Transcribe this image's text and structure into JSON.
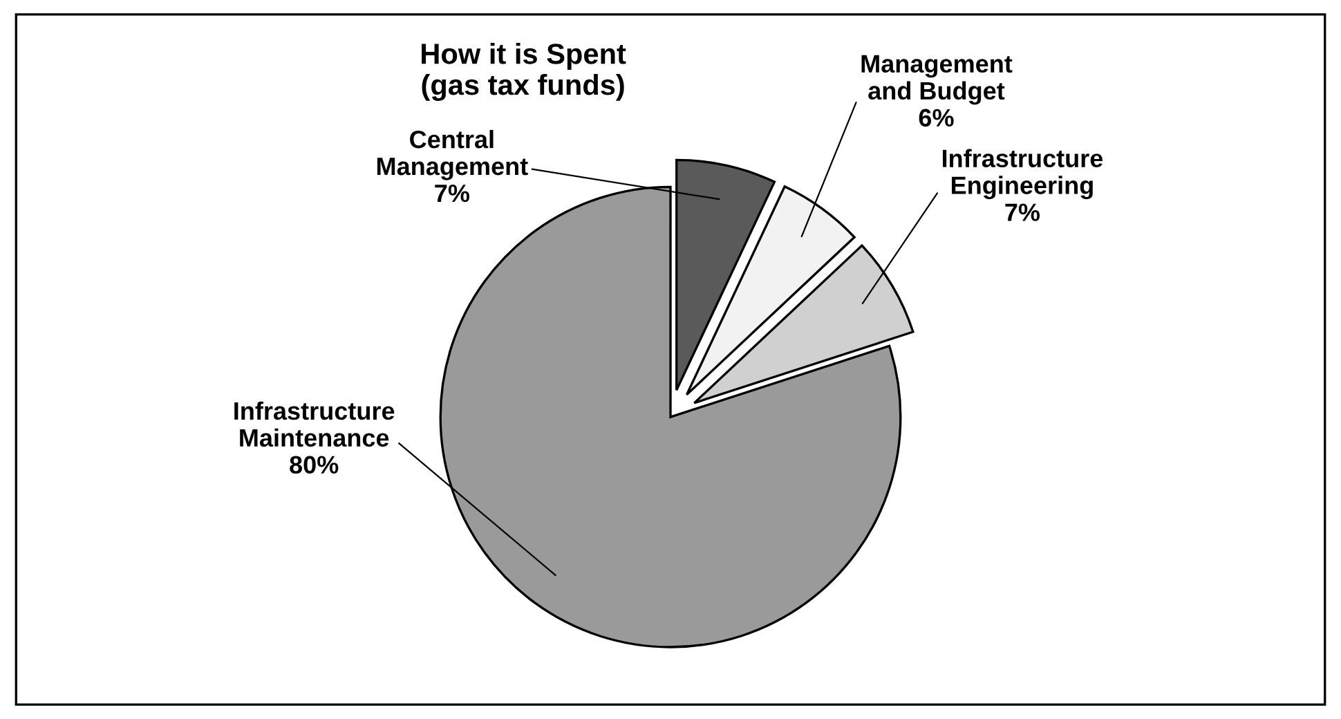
{
  "chart_data": {
    "type": "pie",
    "title": "How it is Spent\n(gas tax funds)",
    "categories": [
      "Central Management",
      "Management and Budget",
      "Infrastructure Engineering",
      "Infrastructure Maintenance"
    ],
    "values": [
      7,
      6,
      7,
      80
    ],
    "value_labels": [
      "7%",
      "6%",
      "7%",
      "80%"
    ],
    "colors": [
      "#5a5a5a",
      "#f2f2f2",
      "#d0d0d0",
      "#9a9a9a"
    ]
  }
}
